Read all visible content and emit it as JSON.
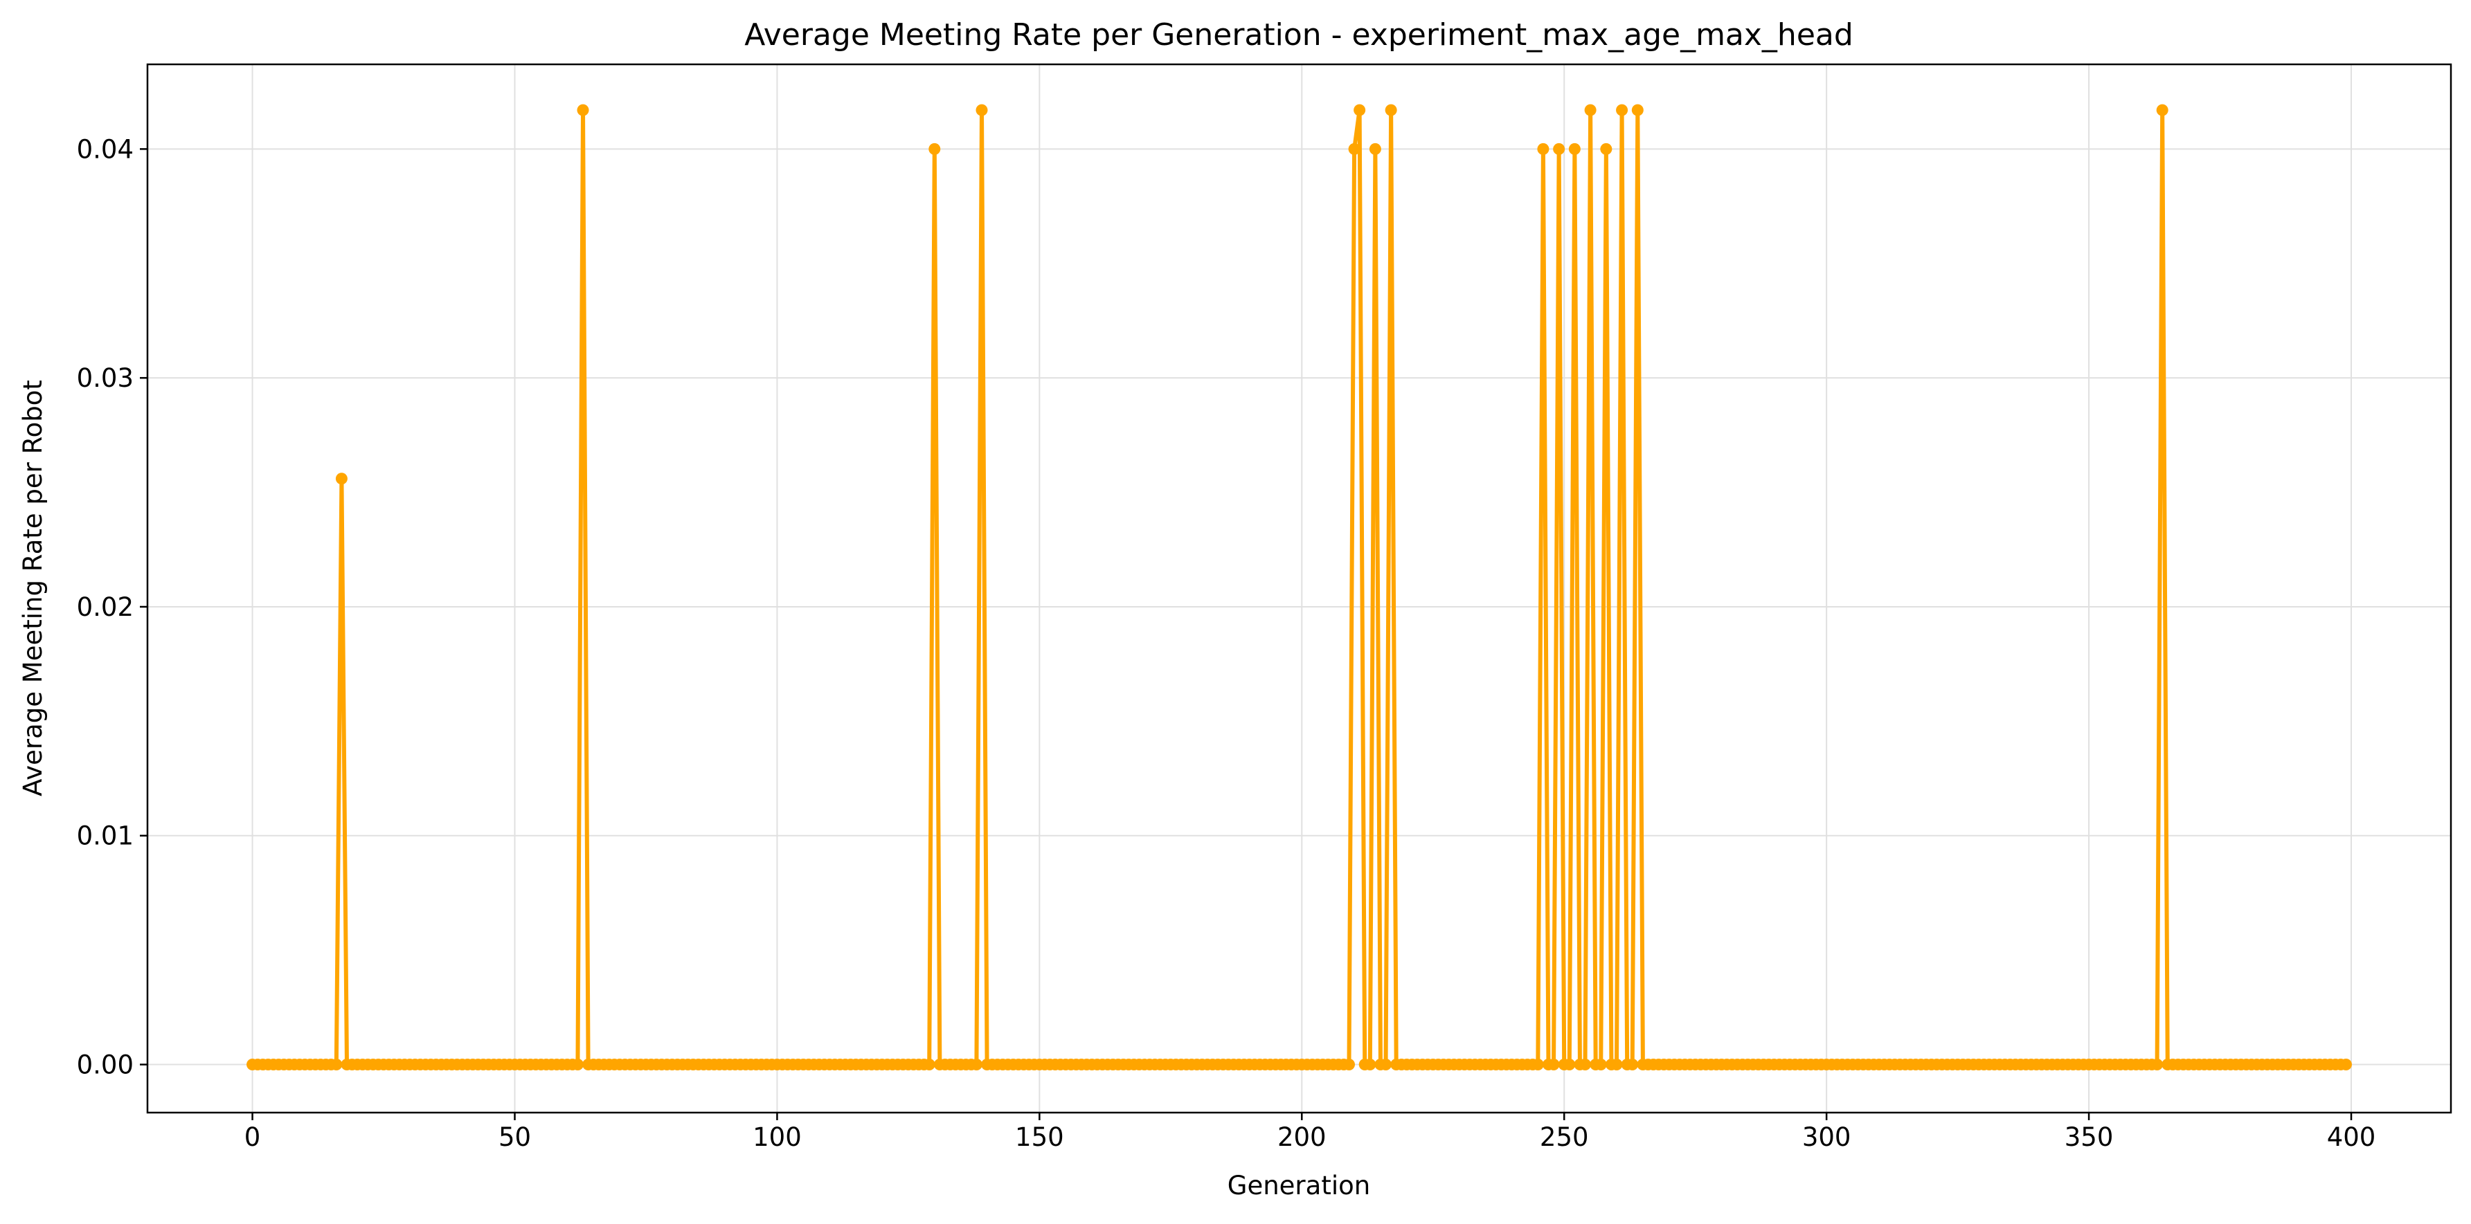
{
  "chart_data": {
    "type": "line",
    "title": "Average Meeting Rate per Generation - experiment_max_age_max_head",
    "xlabel": "Generation",
    "ylabel": "Average Meeting Rate per Robot",
    "x_range": [
      0,
      399
    ],
    "xlim": [
      -20,
      419
    ],
    "ylim": [
      -0.0021,
      0.0437
    ],
    "xticks": [
      0,
      50,
      100,
      150,
      200,
      250,
      300,
      350,
      400
    ],
    "xtick_labels": [
      "0",
      "50",
      "100",
      "150",
      "200",
      "250",
      "300",
      "350",
      "400"
    ],
    "yticks": [
      0,
      0.01,
      0.02,
      0.03,
      0.04
    ],
    "ytick_labels": [
      "0.00",
      "0.01",
      "0.02",
      "0.03",
      "0.04"
    ],
    "grid": true,
    "series": [
      {
        "color": "#ffa500",
        "marker": "circle",
        "default_value": 0,
        "nonzero_points": [
          {
            "x": 17,
            "y": 0.0256
          },
          {
            "x": 63,
            "y": 0.0417
          },
          {
            "x": 130,
            "y": 0.04
          },
          {
            "x": 139,
            "y": 0.0417
          },
          {
            "x": 210,
            "y": 0.04
          },
          {
            "x": 211,
            "y": 0.0417
          },
          {
            "x": 214,
            "y": 0.04
          },
          {
            "x": 217,
            "y": 0.0417
          },
          {
            "x": 246,
            "y": 0.04
          },
          {
            "x": 249,
            "y": 0.04
          },
          {
            "x": 252,
            "y": 0.04
          },
          {
            "x": 255,
            "y": 0.0417
          },
          {
            "x": 258,
            "y": 0.04
          },
          {
            "x": 261,
            "y": 0.0417
          },
          {
            "x": 264,
            "y": 0.0417
          },
          {
            "x": 364,
            "y": 0.0417
          }
        ]
      }
    ]
  }
}
